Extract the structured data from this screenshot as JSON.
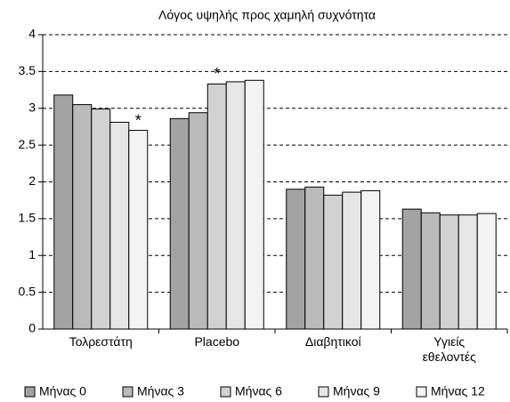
{
  "chart_data": {
    "type": "bar",
    "title": "Λόγος υψηλής προς χαμηλή συχνότητα",
    "categories": [
      "Τολρεστάτη",
      "Placebo",
      "Διαβητικοί",
      "Υγιείς εθελοντές"
    ],
    "series": [
      {
        "name": "Μήνας 0",
        "color": "#a3a3a3",
        "values": [
          3.18,
          2.86,
          1.9,
          1.63
        ]
      },
      {
        "name": "Μήνας 3",
        "color": "#bababa",
        "values": [
          3.05,
          2.94,
          1.93,
          1.58
        ]
      },
      {
        "name": "Μήνας 6",
        "color": "#d2d2d2",
        "values": [
          2.99,
          3.33,
          1.82,
          1.55
        ]
      },
      {
        "name": "Μήνας 9",
        "color": "#e6e6e6",
        "values": [
          2.81,
          3.36,
          1.86,
          1.55
        ]
      },
      {
        "name": "Μήνας 12",
        "color": "#f3f3f3",
        "values": [
          2.7,
          3.38,
          1.88,
          1.57
        ]
      }
    ],
    "annotations": [
      {
        "text": "*",
        "category": "Τολρεστάτη",
        "series": "Μήνας 12"
      },
      {
        "text": "*",
        "category": "Placebo",
        "series": "Μήνας 6"
      }
    ],
    "ylim": [
      0,
      4
    ],
    "yticks": [
      0,
      0.5,
      1,
      1.5,
      2,
      2.5,
      3,
      3.5,
      4
    ],
    "grid": true,
    "legend": "bottom"
  }
}
